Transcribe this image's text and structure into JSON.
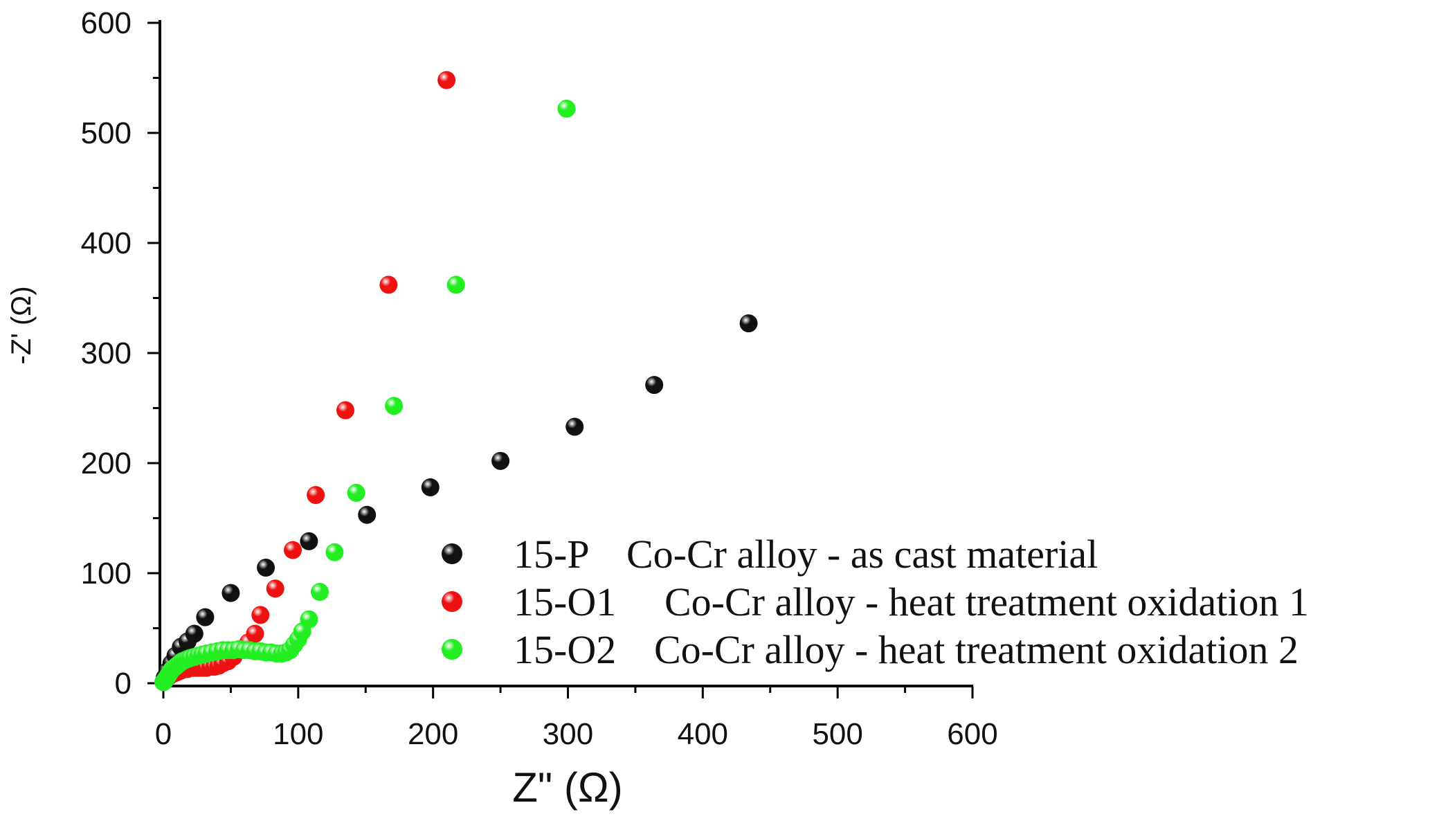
{
  "chart_data": {
    "type": "scatter",
    "title": "",
    "xlabel": "Z\" (Ω)",
    "ylabel": "-Z' (Ω)",
    "xlim": [
      0,
      600
    ],
    "ylim": [
      0,
      600
    ],
    "xticks": [
      "0",
      "100",
      "200",
      "300",
      "400",
      "500",
      "600"
    ],
    "yticks": [
      "0",
      "100",
      "200",
      "300",
      "400",
      "500",
      "600"
    ],
    "grid": false,
    "legend_position": "bottom-right",
    "series": [
      {
        "name": "15-P  Co-Cr alloy - as cast material",
        "code": "15-P",
        "desc": "Co-Cr alloy - as cast material",
        "color": "#111111",
        "points": [
          [
            1,
            5
          ],
          [
            3,
            11
          ],
          [
            6,
            18
          ],
          [
            9,
            25
          ],
          [
            13,
            33
          ],
          [
            18,
            38
          ],
          [
            23,
            45
          ],
          [
            31,
            60
          ],
          [
            50,
            82
          ],
          [
            76,
            105
          ],
          [
            108,
            129
          ],
          [
            151,
            153
          ],
          [
            198,
            178
          ],
          [
            250,
            202
          ],
          [
            305,
            233
          ],
          [
            364,
            271
          ],
          [
            434,
            327
          ]
        ]
      },
      {
        "name": "15-O1   Co-Cr alloy - heat treatment oxidation 1",
        "code": "15-O1",
        "desc": "Co-Cr alloy - heat treatment oxidation 1",
        "color": "#ee1111",
        "points": [
          [
            1,
            2
          ],
          [
            2,
            4
          ],
          [
            4,
            6
          ],
          [
            6,
            8
          ],
          [
            8,
            9
          ],
          [
            10,
            10
          ],
          [
            12,
            11
          ],
          [
            14,
            12
          ],
          [
            16,
            13
          ],
          [
            18,
            13
          ],
          [
            20,
            14
          ],
          [
            22,
            14
          ],
          [
            24,
            14
          ],
          [
            26,
            14
          ],
          [
            28,
            14
          ],
          [
            30,
            14
          ],
          [
            32,
            14
          ],
          [
            35,
            15
          ],
          [
            38,
            15
          ],
          [
            41,
            16
          ],
          [
            44,
            18
          ],
          [
            48,
            20
          ],
          [
            52,
            24
          ],
          [
            57,
            30
          ],
          [
            63,
            37
          ],
          [
            68,
            45
          ],
          [
            72,
            62
          ],
          [
            83,
            86
          ],
          [
            96,
            121
          ],
          [
            113,
            171
          ],
          [
            135,
            248
          ],
          [
            167,
            362
          ],
          [
            210,
            548
          ]
        ]
      },
      {
        "name": "15-O2  Co-Cr alloy - heat treatment oxidation 2",
        "code": "15-O2",
        "desc": "Co-Cr alloy - heat treatment oxidation 2",
        "color": "#22ee22",
        "points": [
          [
            0,
            1
          ],
          [
            1,
            2
          ],
          [
            2,
            4
          ],
          [
            3,
            6
          ],
          [
            4,
            8
          ],
          [
            5,
            10
          ],
          [
            6,
            12
          ],
          [
            8,
            14
          ],
          [
            10,
            16
          ],
          [
            12,
            18
          ],
          [
            14,
            20
          ],
          [
            16,
            21
          ],
          [
            18,
            22
          ],
          [
            20,
            23
          ],
          [
            23,
            24
          ],
          [
            26,
            25
          ],
          [
            29,
            26
          ],
          [
            32,
            27
          ],
          [
            36,
            28
          ],
          [
            40,
            29
          ],
          [
            44,
            30
          ],
          [
            48,
            30
          ],
          [
            52,
            30
          ],
          [
            56,
            31
          ],
          [
            60,
            30
          ],
          [
            64,
            30
          ],
          [
            68,
            29
          ],
          [
            72,
            29
          ],
          [
            76,
            28
          ],
          [
            80,
            28
          ],
          [
            84,
            27
          ],
          [
            88,
            27
          ],
          [
            91,
            28
          ],
          [
            94,
            30
          ],
          [
            97,
            35
          ],
          [
            100,
            40
          ],
          [
            103,
            47
          ],
          [
            108,
            58
          ],
          [
            116,
            83
          ],
          [
            127,
            119
          ],
          [
            143,
            173
          ],
          [
            171,
            252
          ],
          [
            217,
            362
          ],
          [
            299,
            522
          ]
        ]
      }
    ]
  }
}
